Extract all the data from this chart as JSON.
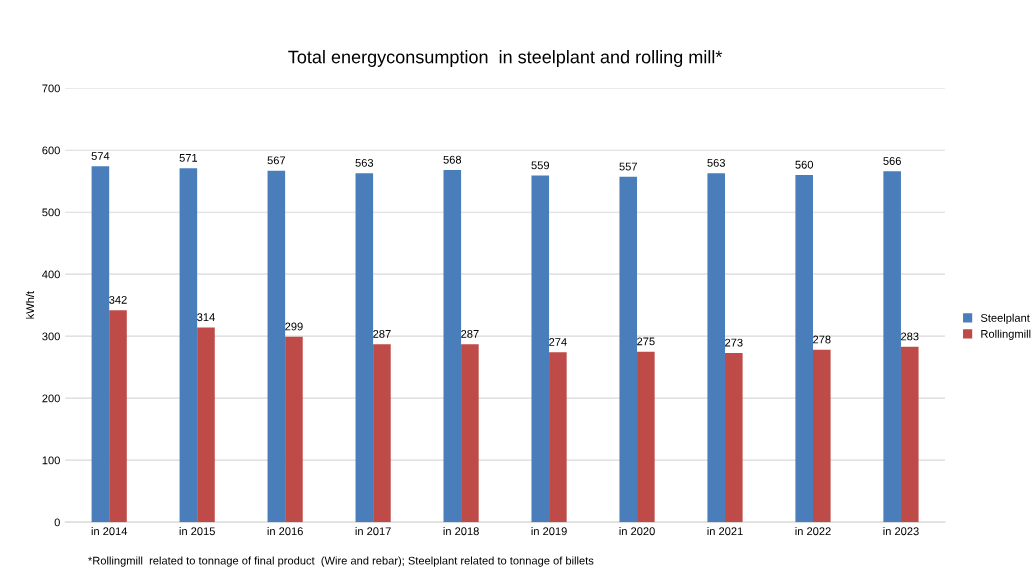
{
  "chart_data": {
    "type": "bar",
    "title": "Total energyconsumption  in steelplant and rolling mill*",
    "ylabel": "kWh/t",
    "categories": [
      "in 2014",
      "in 2015",
      "in 2016",
      "in 2017",
      "in 2018",
      "in 2019",
      "in 2020",
      "in 2021",
      "in 2022",
      "in 2023"
    ],
    "series": [
      {
        "name": "Steelplant",
        "color": "#4a7ebb",
        "values": [
          574,
          571,
          567,
          563,
          568,
          559,
          557,
          563,
          560,
          566
        ]
      },
      {
        "name": "Rollingmill",
        "color": "#be4b48",
        "values": [
          342,
          314,
          299,
          287,
          287,
          274,
          275,
          273,
          278,
          283
        ]
      }
    ],
    "ylim": [
      0,
      700
    ],
    "yticks": [
      0,
      100,
      200,
      300,
      400,
      500,
      600,
      700
    ],
    "grid": "y",
    "legend": "right",
    "data_labels": true,
    "annotations": [
      "*Rollingmill  related to tonnage of final product  (Wire and rebar); Steelplant related to tonnage of billets"
    ]
  }
}
